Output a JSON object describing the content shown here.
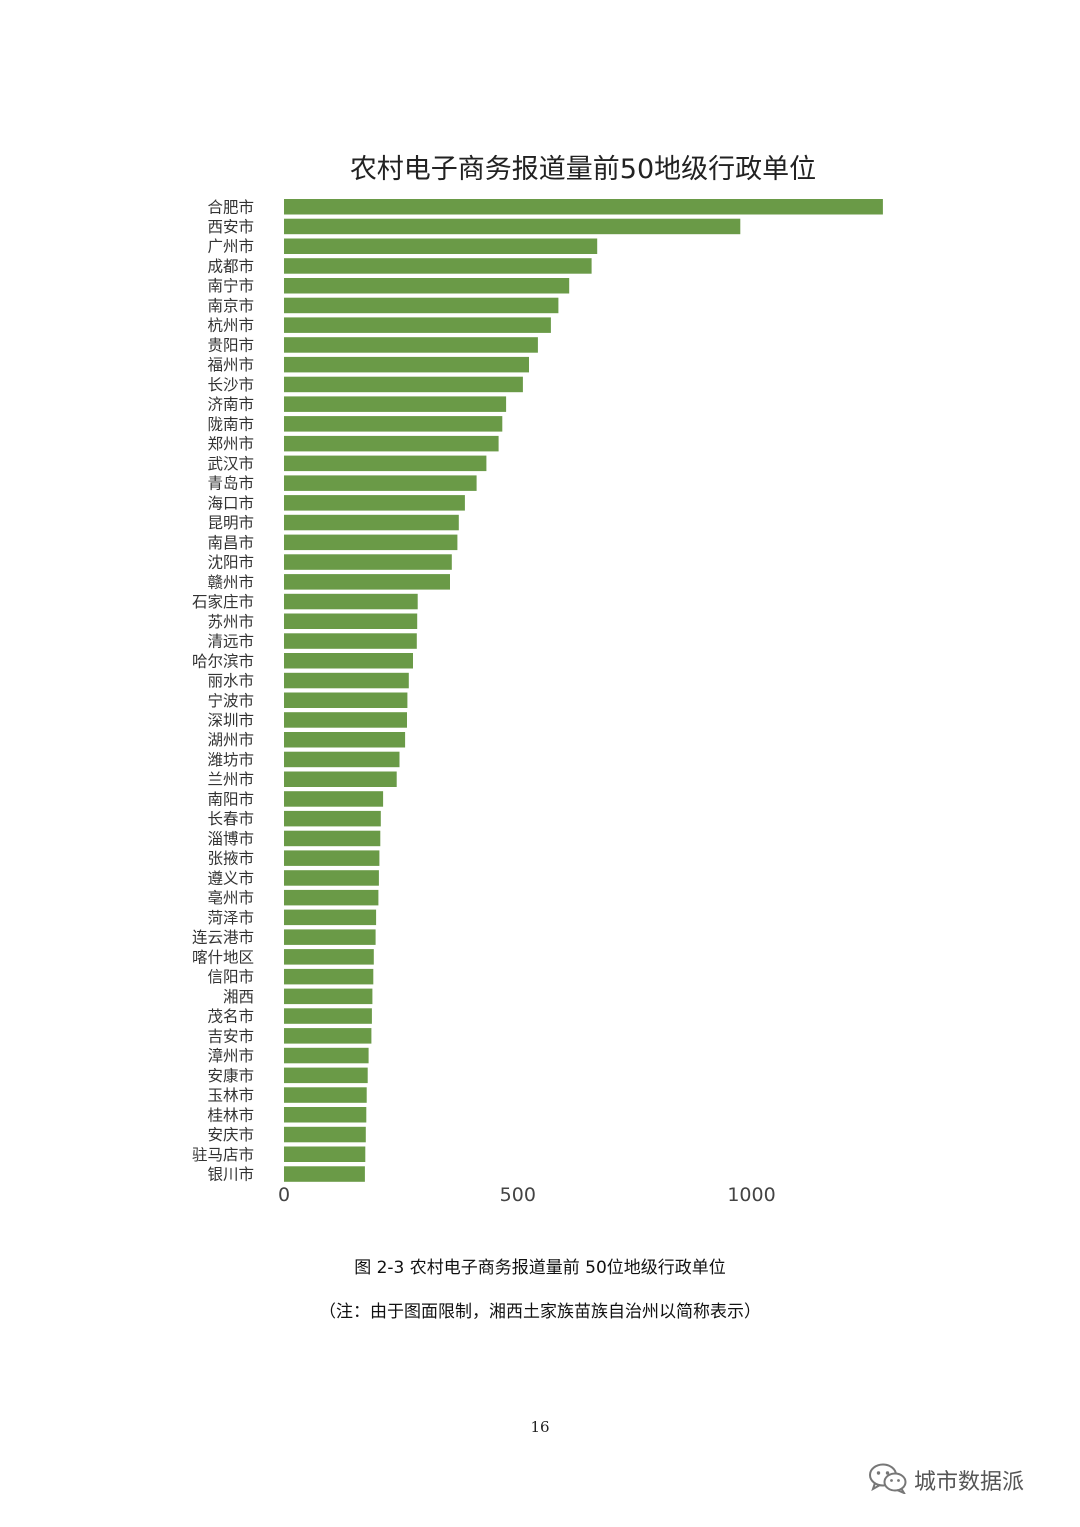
{
  "chart_data": {
    "type": "bar",
    "orientation": "horizontal",
    "title": "农村电子商务报道量前50地级行政单位",
    "xlabel": "",
    "ylabel": "",
    "xlim": [
      0,
      1300
    ],
    "xticks": [
      0,
      500,
      1000
    ],
    "grid": false,
    "bar_color": "#6a9a47",
    "categories": [
      "合肥市",
      "西安市",
      "广州市",
      "成都市",
      "南宁市",
      "南京市",
      "杭州市",
      "贵阳市",
      "福州市",
      "长沙市",
      "济南市",
      "陇南市",
      "郑州市",
      "武汉市",
      "青岛市",
      "海口市",
      "昆明市",
      "南昌市",
      "沈阳市",
      "赣州市",
      "石家庄市",
      "苏州市",
      "清远市",
      "哈尔滨市",
      "丽水市",
      "宁波市",
      "深圳市",
      "湖州市",
      "潍坊市",
      "兰州市",
      "南阳市",
      "长春市",
      "淄博市",
      "张掖市",
      "遵义市",
      "亳州市",
      "菏泽市",
      "连云港市",
      "喀什地区",
      "信阳市",
      "湘西",
      "茂名市",
      "吉安市",
      "漳州市",
      "安康市",
      "玉林市",
      "桂林市",
      "安庆市",
      "驻马店市",
      "银川市"
    ],
    "values": [
      1281,
      976,
      670,
      658,
      610,
      587,
      571,
      543,
      524,
      511,
      475,
      467,
      459,
      433,
      412,
      387,
      374,
      371,
      359,
      355,
      286,
      285,
      284,
      276,
      267,
      264,
      263,
      259,
      247,
      241,
      212,
      207,
      206,
      204,
      203,
      202,
      197,
      196,
      192,
      191,
      189,
      188,
      187,
      181,
      179,
      177,
      176,
      175,
      174,
      173
    ]
  },
  "caption": {
    "figure": "图 2-3 农村电子商务报道量前 50位地级行政单位",
    "note": "（注：由于图面限制，湘西土家族苗族自治州以简称表示）"
  },
  "page_number": "16",
  "watermark": {
    "text": "城市数据派",
    "icon": "wechat-icon"
  }
}
